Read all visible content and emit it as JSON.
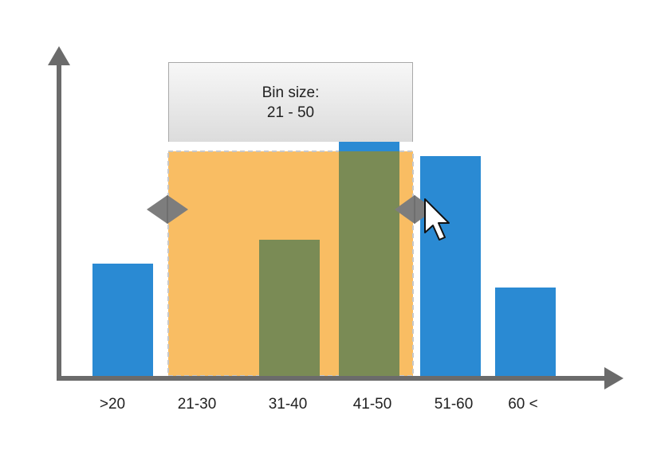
{
  "chart_data": {
    "type": "bar",
    "categories": [
      ">20",
      "21-30",
      "31-40",
      "41-50",
      "51-60",
      "60 <"
    ],
    "values": [
      4.7,
      0,
      5.7,
      11,
      9.2,
      3.7
    ],
    "ylim": [
      0,
      14
    ],
    "grid": false,
    "colors": {
      "bar": "#2a8ad3",
      "selection": "#f9bd63",
      "overlap": "#7a8b55",
      "axis": "#6b6b6b",
      "handle": "#7d7d7d"
    },
    "selection": {
      "label_line1": "Bin size:",
      "label_line2": "21 - 50",
      "from_category": "21-30",
      "to_category": "41-50"
    }
  }
}
